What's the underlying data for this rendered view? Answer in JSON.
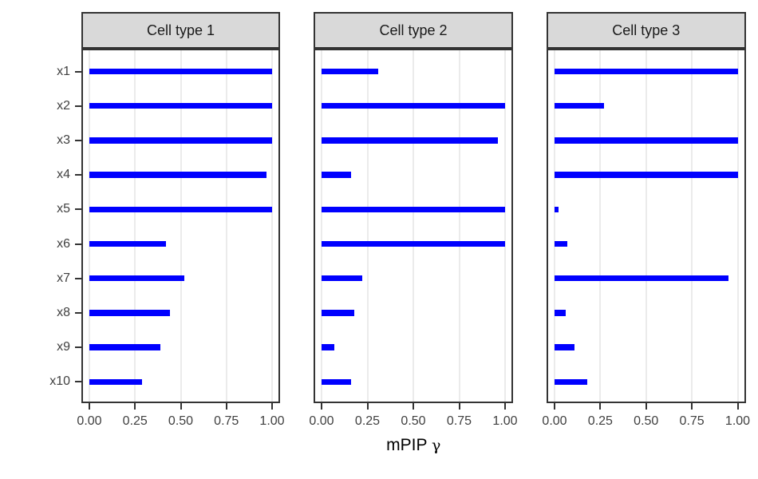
{
  "chart_data": {
    "type": "bar",
    "orientation": "horizontal",
    "title": "",
    "xlabel": "mPIP γ",
    "xlabel_text": "mPIP",
    "xlabel_symbol": "γ",
    "categories": [
      "x1",
      "x2",
      "x3",
      "x4",
      "x5",
      "x6",
      "x7",
      "x8",
      "x9",
      "x10"
    ],
    "x_tick_labels": [
      "0.00",
      "0.25",
      "0.50",
      "0.75",
      "1.00"
    ],
    "x_tick_values": [
      0,
      0.25,
      0.5,
      0.75,
      1.0
    ],
    "xlim": [
      0,
      1
    ],
    "grid": "vertical-major-only",
    "legend": null,
    "facets": [
      {
        "label": "Cell type 1",
        "values": [
          1.0,
          1.0,
          1.0,
          0.97,
          1.0,
          0.42,
          0.52,
          0.44,
          0.39,
          0.29
        ]
      },
      {
        "label": "Cell type 2",
        "values": [
          0.31,
          1.0,
          0.96,
          0.16,
          1.0,
          1.0,
          0.22,
          0.18,
          0.07,
          0.16
        ]
      },
      {
        "label": "Cell type 3",
        "values": [
          1.0,
          0.27,
          1.0,
          1.0,
          0.02,
          0.07,
          0.95,
          0.06,
          0.11,
          0.18
        ]
      }
    ]
  },
  "colors": {
    "bar": "#0000FF",
    "strip_fill": "#D9D9D9",
    "strip_border": "#333333",
    "strip_text": "#1A1A1A",
    "panel_bg": "#FFFFFF",
    "panel_border": "#333333",
    "gridline": "#EBEBEB",
    "tick": "#333333",
    "axis_text": "#404040",
    "axis_title": "#000000",
    "background": "#FFFFFF"
  }
}
